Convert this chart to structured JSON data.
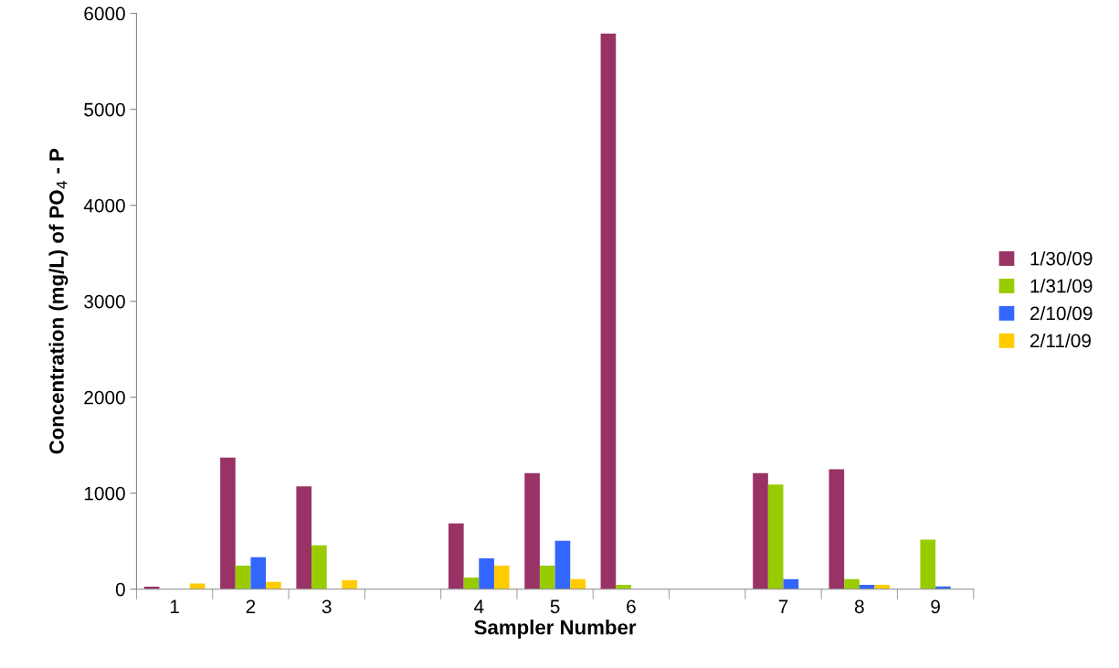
{
  "chart_data": {
    "type": "bar",
    "xlabel": "Sampler Number",
    "ylabel": "Concentration (mg/L) of PO$_{4}$ - P",
    "categories": [
      "1",
      "2",
      "3",
      null,
      "4",
      "5",
      "6",
      null,
      "7",
      "8",
      "9"
    ],
    "series": [
      {
        "name": "1/30/09",
        "color": "#993366",
        "values": [
          25,
          1370,
          1070,
          null,
          686,
          1210,
          5790,
          null,
          1210,
          1250,
          null
        ]
      },
      {
        "name": "1/31/09",
        "color": "#99cc00",
        "values": [
          null,
          245,
          457,
          null,
          121,
          245,
          44,
          null,
          1090,
          105,
          517
        ]
      },
      {
        "name": "2/10/09",
        "color": "#3366ff",
        "values": [
          null,
          333,
          null,
          null,
          321,
          505,
          null,
          null,
          105,
          44,
          29
        ]
      },
      {
        "name": "2/11/09",
        "color": "#ffcc00",
        "values": [
          60,
          76,
          92,
          null,
          245,
          105,
          null,
          null,
          null,
          45,
          null
        ]
      }
    ],
    "ylim": [
      0,
      6000
    ],
    "yticks": [
      0,
      1000,
      2000,
      3000,
      4000,
      5000,
      6000
    ],
    "grid": false,
    "legend": "right"
  }
}
